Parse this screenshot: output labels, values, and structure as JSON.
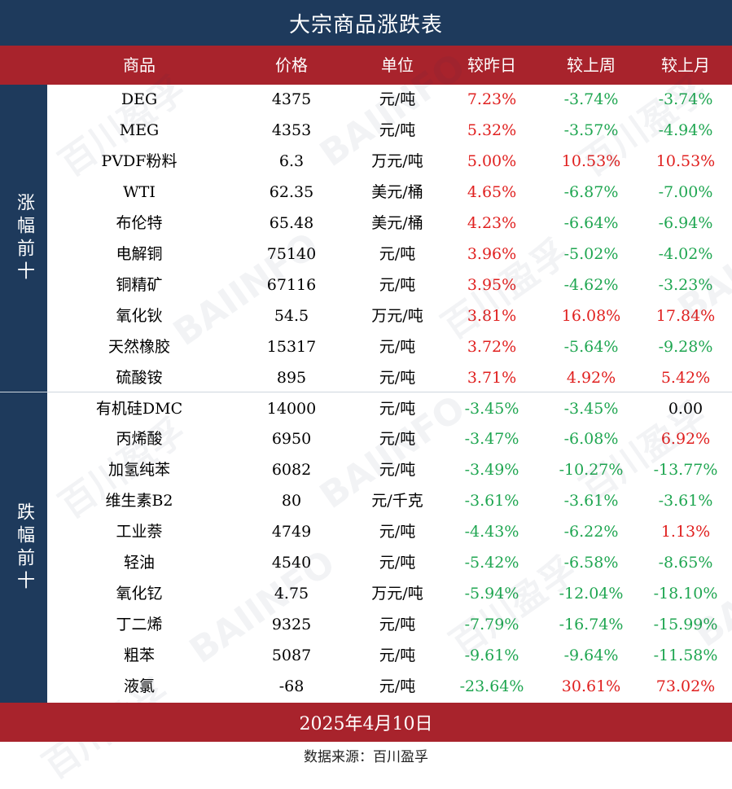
{
  "title": "大宗商品涨跌表",
  "headers": [
    "商品",
    "价格",
    "单位",
    "较昨日",
    "较上周",
    "较上月"
  ],
  "groups": {
    "top_label": "涨幅前十",
    "bottom_label": "跌幅前十"
  },
  "colors": {
    "navy": "#1e3a5c",
    "red_bar": "#a8232c",
    "up": "#e0201f",
    "down": "#1fa651",
    "neutral": "#000000"
  },
  "rows": [
    {
      "name": "DEG",
      "price": "4375",
      "unit": "元/吨",
      "d": "7.23%",
      "w": "-3.74%",
      "m": "-3.74%"
    },
    {
      "name": "MEG",
      "price": "4353",
      "unit": "元/吨",
      "d": "5.32%",
      "w": "-3.57%",
      "m": "-4.94%"
    },
    {
      "name": "PVDF粉料",
      "price": "6.3",
      "unit": "万元/吨",
      "d": "5.00%",
      "w": "10.53%",
      "m": "10.53%"
    },
    {
      "name": "WTI",
      "price": "62.35",
      "unit": "美元/桶",
      "d": "4.65%",
      "w": "-6.87%",
      "m": "-7.00%"
    },
    {
      "name": "布伦特",
      "price": "65.48",
      "unit": "美元/桶",
      "d": "4.23%",
      "w": "-6.64%",
      "m": "-6.94%"
    },
    {
      "name": "电解铜",
      "price": "75140",
      "unit": "元/吨",
      "d": "3.96%",
      "w": "-5.02%",
      "m": "-4.02%"
    },
    {
      "name": "铜精矿",
      "price": "67116",
      "unit": "元/吨",
      "d": "3.95%",
      "w": "-4.62%",
      "m": "-3.23%"
    },
    {
      "name": "氧化钬",
      "price": "54.5",
      "unit": "万元/吨",
      "d": "3.81%",
      "w": "16.08%",
      "m": "17.84%"
    },
    {
      "name": "天然橡胶",
      "price": "15317",
      "unit": "元/吨",
      "d": "3.72%",
      "w": "-5.64%",
      "m": "-9.28%"
    },
    {
      "name": "硫酸铵",
      "price": "895",
      "unit": "元/吨",
      "d": "3.71%",
      "w": "4.92%",
      "m": "5.42%"
    },
    {
      "name": "有机硅DMC",
      "price": "14000",
      "unit": "元/吨",
      "d": "-3.45%",
      "w": "-3.45%",
      "m": "0.00"
    },
    {
      "name": "丙烯酸",
      "price": "6950",
      "unit": "元/吨",
      "d": "-3.47%",
      "w": "-6.08%",
      "m": "6.92%"
    },
    {
      "name": "加氢纯苯",
      "price": "6082",
      "unit": "元/吨",
      "d": "-3.49%",
      "w": "-10.27%",
      "m": "-13.77%"
    },
    {
      "name": "维生素B2",
      "price": "80",
      "unit": "元/千克",
      "d": "-3.61%",
      "w": "-3.61%",
      "m": "-3.61%"
    },
    {
      "name": "工业萘",
      "price": "4749",
      "unit": "元/吨",
      "d": "-4.43%",
      "w": "-6.22%",
      "m": "1.13%"
    },
    {
      "name": "轻油",
      "price": "4540",
      "unit": "元/吨",
      "d": "-5.42%",
      "w": "-6.58%",
      "m": "-8.65%"
    },
    {
      "name": "氧化钇",
      "price": "4.75",
      "unit": "万元/吨",
      "d": "-5.94%",
      "w": "-12.04%",
      "m": "-18.10%"
    },
    {
      "name": "丁二烯",
      "price": "9325",
      "unit": "元/吨",
      "d": "-7.79%",
      "w": "-16.74%",
      "m": "-15.99%"
    },
    {
      "name": "粗苯",
      "price": "5087",
      "unit": "元/吨",
      "d": "-9.61%",
      "w": "-9.64%",
      "m": "-11.58%"
    },
    {
      "name": "液氯",
      "price": "-68",
      "unit": "元/吨",
      "d": "-23.64%",
      "w": "30.61%",
      "m": "73.02%"
    }
  ],
  "date": "2025年4月10日",
  "source": "数据来源：百川盈孚",
  "watermark": {
    "cn": "百川盈孚",
    "en": "BAIINFO"
  }
}
